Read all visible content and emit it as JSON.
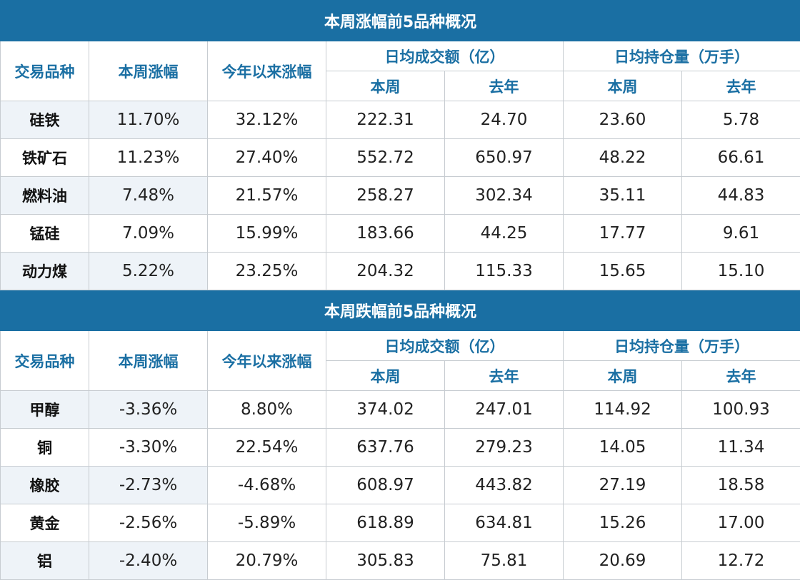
{
  "header_labels": {
    "product": "交易品种",
    "week_change": "本周涨幅",
    "ytd_change": "今年以来涨幅",
    "avg_volume": "日均成交额（亿）",
    "avg_oi": "日均持仓量（万手）",
    "this_week": "本周",
    "last_year": "去年"
  },
  "sections": [
    {
      "title": "本周涨幅前5品种概况",
      "rows": [
        {
          "name": "硅铁",
          "week": "11.70%",
          "ytd": "32.12%",
          "vol_week": "222.31",
          "vol_last": "24.70",
          "oi_week": "23.60",
          "oi_last": "5.78"
        },
        {
          "name": "铁矿石",
          "week": "11.23%",
          "ytd": "27.40%",
          "vol_week": "552.72",
          "vol_last": "650.97",
          "oi_week": "48.22",
          "oi_last": "66.61"
        },
        {
          "name": "燃料油",
          "week": "7.48%",
          "ytd": "21.57%",
          "vol_week": "258.27",
          "vol_last": "302.34",
          "oi_week": "35.11",
          "oi_last": "44.83"
        },
        {
          "name": "锰硅",
          "week": "7.09%",
          "ytd": "15.99%",
          "vol_week": "183.66",
          "vol_last": "44.25",
          "oi_week": "17.77",
          "oi_last": "9.61"
        },
        {
          "name": "动力煤",
          "week": "5.22%",
          "ytd": "23.25%",
          "vol_week": "204.32",
          "vol_last": "115.33",
          "oi_week": "15.65",
          "oi_last": "15.10"
        }
      ]
    },
    {
      "title": "本周跌幅前5品种概况",
      "rows": [
        {
          "name": "甲醇",
          "week": "-3.36%",
          "ytd": "8.80%",
          "vol_week": "374.02",
          "vol_last": "247.01",
          "oi_week": "114.92",
          "oi_last": "100.93"
        },
        {
          "name": "铜",
          "week": "-3.30%",
          "ytd": "22.54%",
          "vol_week": "637.76",
          "vol_last": "279.23",
          "oi_week": "14.05",
          "oi_last": "11.34"
        },
        {
          "name": "橡胶",
          "week": "-2.73%",
          "ytd": "-4.68%",
          "vol_week": "608.97",
          "vol_last": "443.82",
          "oi_week": "27.19",
          "oi_last": "18.58"
        },
        {
          "name": "黄金",
          "week": "-2.56%",
          "ytd": "-5.89%",
          "vol_week": "618.89",
          "vol_last": "634.81",
          "oi_week": "15.26",
          "oi_last": "17.00"
        },
        {
          "name": "铝",
          "week": "-2.40%",
          "ytd": "20.79%",
          "vol_week": "305.83",
          "vol_last": "75.81",
          "oi_week": "20.69",
          "oi_last": "12.72"
        }
      ]
    }
  ]
}
